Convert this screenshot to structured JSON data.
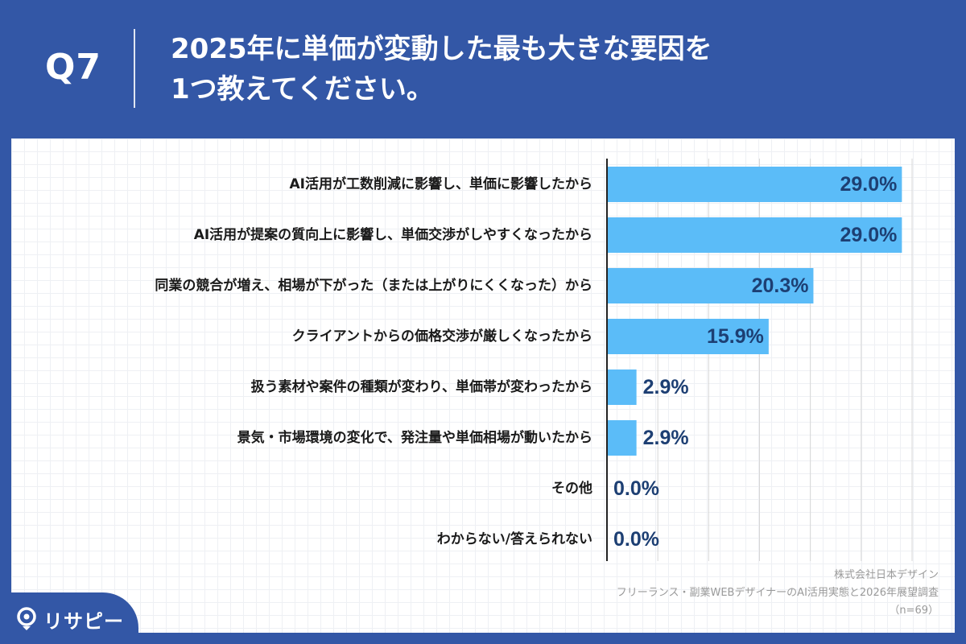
{
  "header": {
    "question_number": "Q7",
    "title_line1": "2025年に単価が変動した最も大きな要因を",
    "title_line2": "1つ教えてください。"
  },
  "colors": {
    "header_bg": "#3357a6",
    "bar": "#5bbcf8",
    "label_text": "#1a1a1a",
    "value_text": "#1d3f73",
    "grid": "#d7d7d7"
  },
  "chart_data": {
    "type": "bar",
    "orientation": "horizontal",
    "categories": [
      "AI活用が工数削減に影響し、単価に影響したから",
      "AI活用が提案の質向上に影響し、単価交渉がしやすくなったから",
      "同業の競合が増え、相場が下がった（または上がりにくくなった）から",
      "クライアントからの価格交渉が厳しくなったから",
      "扱う素材や案件の種類が変わり、単価帯が変わったから",
      "景気・市場環境の変化で、発注量や単価相場が動いたから",
      "その他",
      "わからない/答えられない"
    ],
    "values": [
      29.0,
      29.0,
      20.3,
      15.9,
      2.9,
      2.9,
      0.0,
      0.0
    ],
    "value_labels": [
      "29.0%",
      "29.0%",
      "20.3%",
      "15.9%",
      "2.9%",
      "2.9%",
      "0.0%",
      "0.0%"
    ],
    "xlim": [
      0,
      30
    ],
    "grid": true,
    "legend": "none"
  },
  "source": {
    "company": "株式会社日本デザイン",
    "survey": "フリーランス・副業WEBデザイナーのAI活用実態と2026年展望調査",
    "n": "（n=69）"
  },
  "logo": {
    "text": "リサピー",
    "icon": "lightbulb-pin-icon"
  }
}
